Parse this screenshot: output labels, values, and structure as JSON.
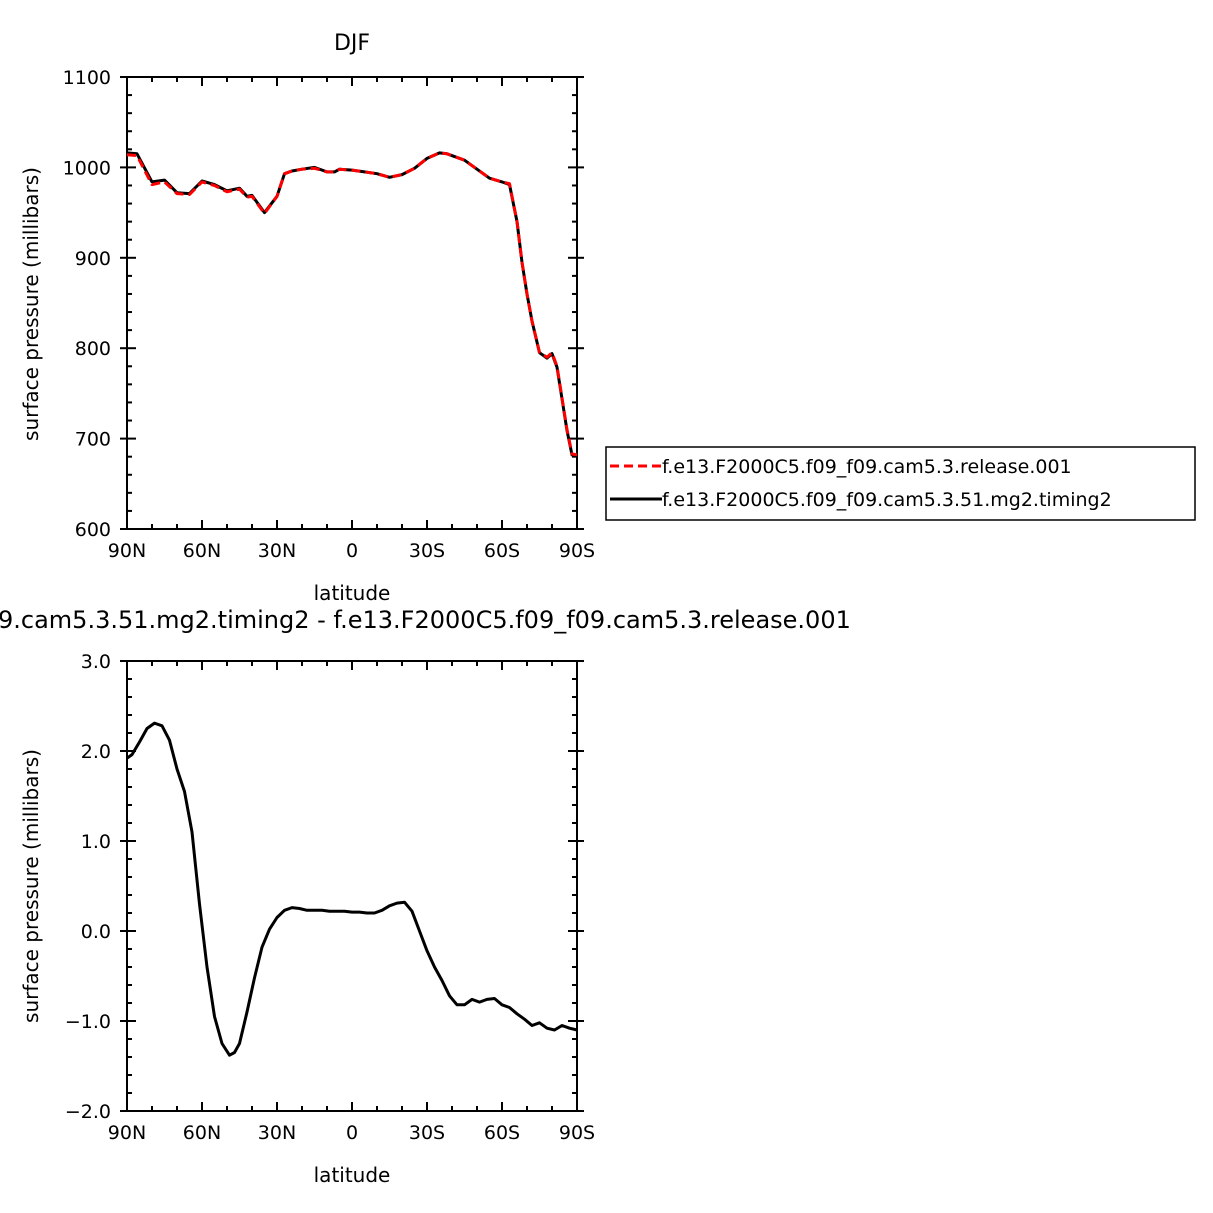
{
  "chart_data": [
    {
      "type": "line",
      "title": "DJF",
      "xlabel": "latitude",
      "ylabel": "surface pressure (millibars)",
      "xticks": [
        "90N",
        "60N",
        "30N",
        "0",
        "30S",
        "60S",
        "90S"
      ],
      "yticks": [
        "600",
        "700",
        "800",
        "900",
        "1000",
        "1100"
      ],
      "xlim": [
        90,
        -90
      ],
      "ylim": [
        600,
        1100
      ],
      "legend_position": "right",
      "series": [
        {
          "name": "f.e13.F2000C5.f09_f09.cam5.3.release.001",
          "color": "#ff0000",
          "style": "dashed",
          "x": [
            90,
            86,
            80,
            75,
            70,
            65,
            60,
            55,
            50,
            45,
            42,
            40,
            35,
            30,
            27,
            24,
            20,
            15,
            10,
            7,
            5,
            0,
            -5,
            -10,
            -15,
            -20,
            -25,
            -30,
            -35,
            -38,
            -45,
            -50,
            -55,
            -60,
            -63,
            -66,
            -68,
            -70,
            -72,
            -75,
            -78,
            -80,
            -82,
            -84,
            -86,
            -88,
            -90
          ],
          "y": [
            1014,
            1013,
            981,
            984,
            971,
            970,
            984,
            980,
            973,
            976,
            967,
            968,
            949,
            968,
            993,
            996,
            998,
            999,
            995,
            995,
            998,
            997,
            995,
            993,
            989,
            992,
            999,
            1010,
            1016,
            1015,
            1008,
            998,
            988,
            984,
            982,
            940,
            895,
            860,
            830,
            795,
            790,
            795,
            780,
            745,
            710,
            683,
            682
          ]
        },
        {
          "name": "f.e13.F2000C5.f09_f09.cam5.3.51.mg2.timing2",
          "color": "#000000",
          "style": "solid",
          "x": [
            90,
            86,
            80,
            75,
            70,
            65,
            60,
            55,
            50,
            45,
            42,
            40,
            35,
            30,
            27,
            24,
            20,
            15,
            10,
            7,
            5,
            0,
            -5,
            -10,
            -15,
            -20,
            -25,
            -30,
            -35,
            -38,
            -45,
            -50,
            -55,
            -60,
            -63,
            -66,
            -68,
            -70,
            -72,
            -75,
            -78,
            -80,
            -82,
            -84,
            -86,
            -88,
            -90
          ],
          "y": [
            1016,
            1015,
            984,
            986,
            972,
            971,
            985,
            981,
            974,
            977,
            968,
            969,
            950,
            968,
            993,
            996,
            998,
            1000,
            995,
            995,
            998,
            997,
            995,
            993,
            989,
            992,
            999,
            1010,
            1016,
            1015,
            1008,
            998,
            988,
            984,
            981,
            940,
            895,
            860,
            830,
            795,
            789,
            794,
            779,
            744,
            709,
            682,
            681
          ]
        }
      ]
    },
    {
      "type": "line",
      "title": "9.cam5.3.51.mg2.timing2 - f.e13.F2000C5.f09_f09.cam5.3.release.001",
      "xlabel": "latitude",
      "ylabel": "surface pressure (millibars)",
      "xticks": [
        "90N",
        "60N",
        "30N",
        "0",
        "30S",
        "60S",
        "90S"
      ],
      "yticks": [
        "-2.0",
        "-1.0",
        "0.0",
        "1.0",
        "2.0",
        "3.0"
      ],
      "xlim": [
        90,
        -90
      ],
      "ylim": [
        -2.0,
        3.0
      ],
      "series": [
        {
          "color": "#000000",
          "style": "solid",
          "x": [
            90,
            88,
            85,
            82,
            79,
            76,
            73,
            70,
            67,
            64,
            61,
            58,
            55,
            52,
            49,
            47,
            45,
            42,
            39,
            36,
            33,
            30,
            27,
            24,
            21,
            18,
            15,
            12,
            9,
            6,
            3,
            0,
            -3,
            -6,
            -9,
            -12,
            -15,
            -18,
            -21,
            -24,
            -27,
            -30,
            -33,
            -36,
            -39,
            -42,
            -45,
            -48,
            -51,
            -54,
            -57,
            -60,
            -63,
            -66,
            -69,
            -72,
            -75,
            -78,
            -81,
            -84,
            -87,
            -90
          ],
          "y": [
            1.92,
            1.96,
            2.1,
            2.25,
            2.31,
            2.28,
            2.12,
            1.8,
            1.55,
            1.1,
            0.3,
            -0.4,
            -0.95,
            -1.25,
            -1.38,
            -1.35,
            -1.25,
            -0.9,
            -0.52,
            -0.18,
            0.02,
            0.15,
            0.23,
            0.26,
            0.25,
            0.23,
            0.23,
            0.23,
            0.22,
            0.22,
            0.22,
            0.21,
            0.21,
            0.2,
            0.2,
            0.23,
            0.28,
            0.31,
            0.32,
            0.22,
            0.0,
            -0.22,
            -0.4,
            -0.55,
            -0.72,
            -0.82,
            -0.82,
            -0.76,
            -0.79,
            -0.76,
            -0.75,
            -0.82,
            -0.85,
            -0.92,
            -0.98,
            -1.05,
            -1.02,
            -1.08,
            -1.1,
            -1.05,
            -1.08,
            -1.1
          ]
        }
      ]
    }
  ]
}
